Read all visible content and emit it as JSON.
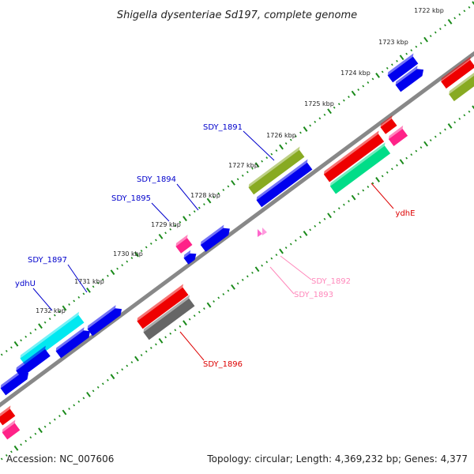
{
  "title": "Shigella dysenteriae Sd197, complete genome",
  "footer": {
    "accession": "Accession: NC_007606",
    "stats": "Topology: circular; Length: 4,369,232 bp; Genes: 4,377"
  },
  "kbp_labels": [
    "1722 kbp",
    "1723 kbp",
    "1724 kbp",
    "1725 kbp",
    "1726 kbp",
    "1727 kbp",
    "1728 kbp",
    "1729 kbp",
    "1730 kbp",
    "1731 kbp",
    "1732 kbp"
  ],
  "gene_labels": [
    {
      "text": "SDY_1891",
      "color": "#0000cc"
    },
    {
      "text": "SDY_1894",
      "color": "#0000cc"
    },
    {
      "text": "SDY_1895",
      "color": "#0000cc"
    },
    {
      "text": "SDY_1897",
      "color": "#0000cc"
    },
    {
      "text": "ydhU",
      "color": "#0000cc"
    },
    {
      "text": "ydhE",
      "color": "#dd0000"
    },
    {
      "text": "SDY_1892",
      "color": "#ff88bb"
    },
    {
      "text": "SDY_1893",
      "color": "#ff88bb"
    },
    {
      "text": "SDY_1896",
      "color": "#dd0000"
    }
  ],
  "colors": {
    "backbone": "#888888",
    "tick": "#1a8a1a",
    "blue": "#0000ee",
    "red": "#ee0000",
    "cyan": "#00e8f0",
    "olive": "#88aa22",
    "pink": "#ff2288",
    "teal": "#00dd88",
    "gray": "#666666"
  }
}
